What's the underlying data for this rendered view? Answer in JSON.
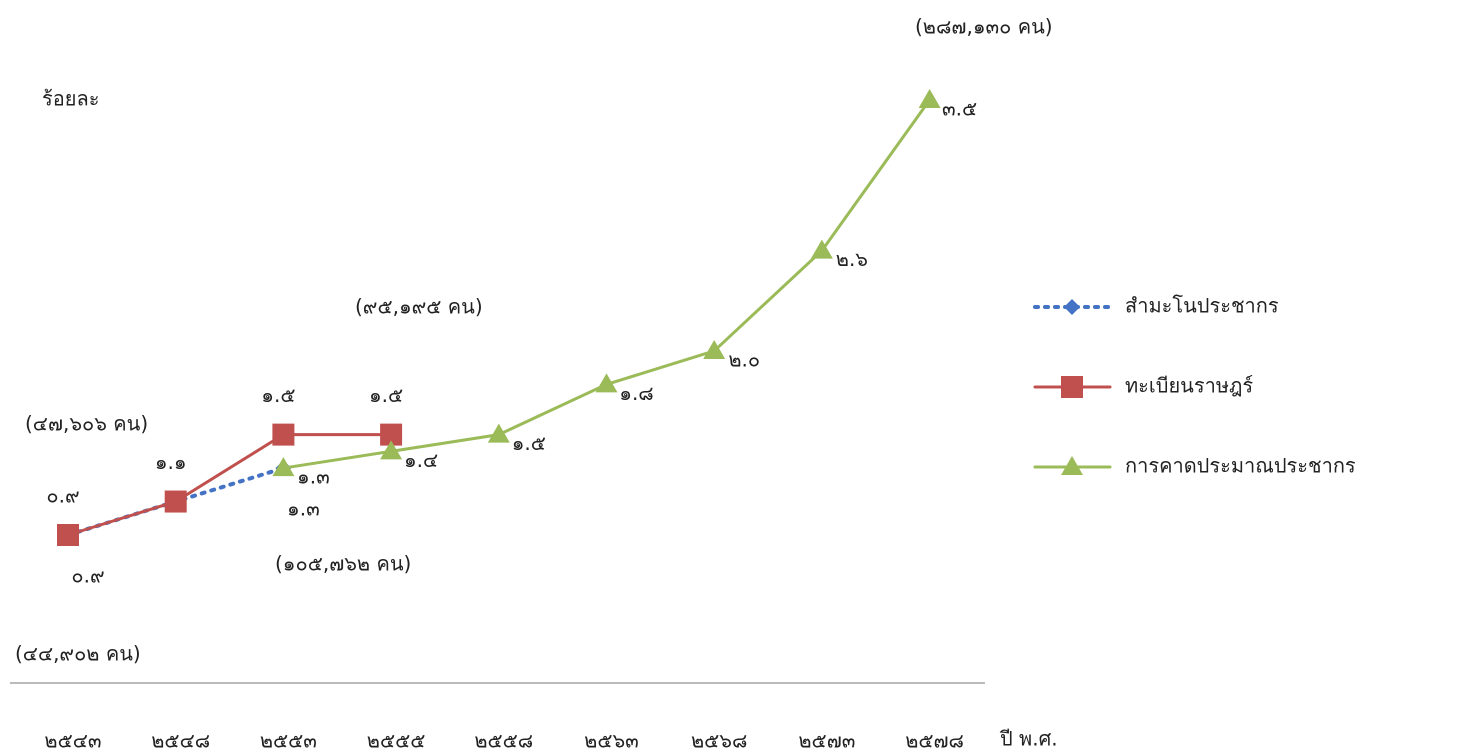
{
  "chart_data": {
    "type": "line",
    "y_label": "ร้อยละ",
    "x_label": "ปี พ.ศ.",
    "categories": [
      "๒๕๔๓",
      "๒๕๔๘",
      "๒๕๕๓",
      "๒๕๕๕",
      "๒๕๕๘",
      "๒๕๖๓",
      "๒๕๖๘",
      "๒๕๗๓",
      "๒๕๗๘"
    ],
    "series": [
      {
        "name": "สำมะโนประชากร",
        "color": "#4472c4",
        "marker": "diamond",
        "dash": true,
        "values": [
          0.9,
          1.1,
          1.3,
          null,
          null,
          null,
          null,
          null,
          null
        ],
        "value_labels": [
          "๐.๙",
          null,
          "๑.๓",
          null,
          null,
          null,
          null,
          null,
          null
        ]
      },
      {
        "name": "ทะเบียนราษฎร์",
        "color": "#c0504d",
        "marker": "square",
        "dash": false,
        "values": [
          0.9,
          1.1,
          1.5,
          1.5,
          null,
          null,
          null,
          null,
          null
        ],
        "value_labels": [
          "๐.๙",
          "๑.๑",
          "๑.๕",
          "๑.๕",
          null,
          null,
          null,
          null,
          null
        ]
      },
      {
        "name": "การคาดประมาณประชากร",
        "color": "#9bbb59",
        "marker": "triangle",
        "dash": false,
        "values": [
          null,
          null,
          1.3,
          1.4,
          1.5,
          1.8,
          2.0,
          2.6,
          3.5
        ],
        "value_labels": [
          null,
          null,
          "๑.๓",
          "๑.๔",
          "๑.๕",
          "๑.๘",
          "๒.๐",
          "๒.๖",
          "๓.๕"
        ]
      }
    ],
    "annotations": [
      "(๔๔,๙๐๒ คน)",
      "(๔๗,๖๐๖ คน)",
      "(๙๕,๑๙๕ คน)",
      "(๑๐๕,๗๖๒ คน)",
      "(๒๘๗,๑๓๐ คน)"
    ]
  }
}
